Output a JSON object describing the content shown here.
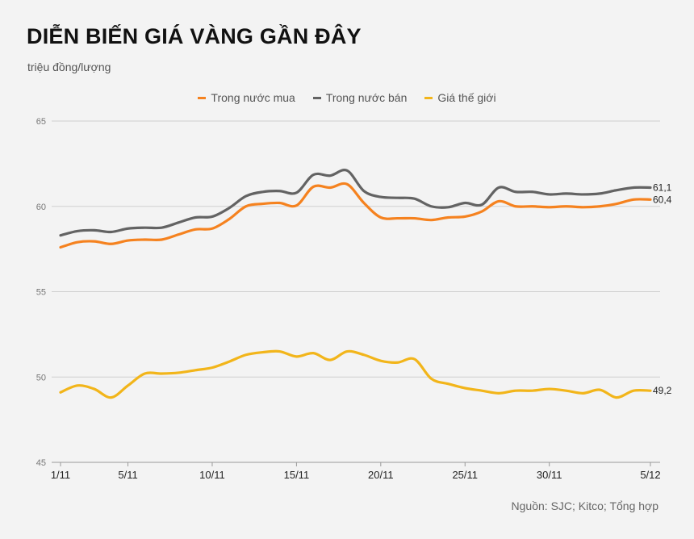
{
  "chart_data": {
    "type": "line",
    "title": "DIỄN BIẾN GIÁ VÀNG GẦN ĐÂY",
    "subtitle": "triệu đồng/lượng",
    "source": "Nguồn: SJC; Kitco; Tổng hợp",
    "ylim": [
      45,
      65
    ],
    "yticks": [
      "45",
      "50",
      "55",
      "60",
      "65"
    ],
    "xticks": [
      "1/11",
      "5/11",
      "10/11",
      "15/11",
      "20/11",
      "25/11",
      "30/11",
      "5/12"
    ],
    "x_start": "1/11",
    "x_end": "5/12",
    "grid": true,
    "legend_position": "top",
    "series": [
      {
        "name": "Trong nước mua",
        "color": "#f5821f",
        "end_label": "60,4",
        "values": [
          57.6,
          57.9,
          57.95,
          57.8,
          58.0,
          58.05,
          58.05,
          58.35,
          58.65,
          58.7,
          59.25,
          60.0,
          60.15,
          60.2,
          60.05,
          61.15,
          61.1,
          61.3,
          60.2,
          59.35,
          59.3,
          59.3,
          59.2,
          59.35,
          59.4,
          59.7,
          60.3,
          60.0,
          60.0,
          59.95,
          60.0,
          59.95,
          60.0,
          60.15,
          60.4,
          60.4
        ]
      },
      {
        "name": "Trong nước bán",
        "color": "#636363",
        "end_label": "61,1",
        "values": [
          58.3,
          58.55,
          58.6,
          58.5,
          58.7,
          58.75,
          58.75,
          59.05,
          59.35,
          59.4,
          59.9,
          60.6,
          60.85,
          60.9,
          60.8,
          61.85,
          61.8,
          62.1,
          60.9,
          60.55,
          60.5,
          60.45,
          60.0,
          59.95,
          60.2,
          60.1,
          61.1,
          60.85,
          60.85,
          60.7,
          60.75,
          60.7,
          60.75,
          60.95,
          61.1,
          61.1
        ]
      },
      {
        "name": "Giá thế giới",
        "color": "#f2b51a",
        "end_label": "49,2",
        "values": [
          49.1,
          49.5,
          49.3,
          48.8,
          49.5,
          50.2,
          50.2,
          50.25,
          50.4,
          50.55,
          50.9,
          51.3,
          51.45,
          51.5,
          51.2,
          51.4,
          51.0,
          51.5,
          51.3,
          50.95,
          50.85,
          51.05,
          49.9,
          49.6,
          49.35,
          49.2,
          49.05,
          49.2,
          49.2,
          49.3,
          49.2,
          49.05,
          49.25,
          48.8,
          49.2,
          49.2
        ]
      }
    ]
  }
}
